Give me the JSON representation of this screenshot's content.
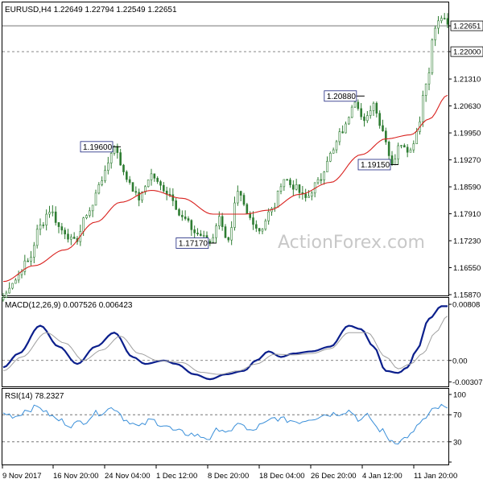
{
  "colors": {
    "background": "#ffffff",
    "frame": "#000000",
    "candles": "#2e7d32",
    "ma": "#d9211e",
    "macd": "#0b1f8c",
    "signal": "#a0a0a0",
    "rsi": "#3a8fd9",
    "guide": "#606060",
    "watermark": "#c8c8c8"
  },
  "chart_data": [
    {
      "type": "candlestick",
      "panel": "price",
      "title": "EURUSD,H4",
      "ohlc_label": "1.22649 1.22794 1.22549 1.22651",
      "ylim": [
        1.1587,
        1.2314
      ],
      "y_ticks": [
        "1.22651",
        "1.22000",
        "1.21310",
        "1.20630",
        "1.19950",
        "1.19270",
        "1.18590",
        "1.17910",
        "1.17230",
        "1.16550",
        "1.15870"
      ],
      "current_price": "1.22651",
      "h_lines": [
        {
          "value": "1.22000",
          "style": "dashed"
        },
        {
          "value": "1.22651",
          "style": "solid"
        }
      ],
      "annotations": [
        {
          "label": "1.19600",
          "bar": 36,
          "value": 1.196
        },
        {
          "label": "1.17170",
          "bar": 67,
          "value": 1.1717
        },
        {
          "label": "1.20880",
          "bar": 115,
          "value": 1.2088
        },
        {
          "label": "1.19150",
          "bar": 126,
          "value": 1.1915
        }
      ],
      "watermark": "ActionForex.com",
      "anchors": [
        [
          0,
          1.158
        ],
        [
          3,
          1.162
        ],
        [
          8,
          1.167
        ],
        [
          12,
          1.176
        ],
        [
          15,
          1.18
        ],
        [
          19,
          1.175
        ],
        [
          23,
          1.172
        ],
        [
          28,
          1.18
        ],
        [
          32,
          1.188
        ],
        [
          36,
          1.196
        ],
        [
          40,
          1.188
        ],
        [
          44,
          1.183
        ],
        [
          48,
          1.189
        ],
        [
          51,
          1.186
        ],
        [
          54,
          1.184
        ],
        [
          58,
          1.178
        ],
        [
          63,
          1.174
        ],
        [
          67,
          1.172
        ],
        [
          70,
          1.178
        ],
        [
          73,
          1.172
        ],
        [
          76,
          1.184
        ],
        [
          80,
          1.178
        ],
        [
          83,
          1.175
        ],
        [
          87,
          1.18
        ],
        [
          91,
          1.188
        ],
        [
          94,
          1.186
        ],
        [
          98,
          1.183
        ],
        [
          102,
          1.187
        ],
        [
          106,
          1.194
        ],
        [
          110,
          1.2
        ],
        [
          114,
          1.208
        ],
        [
          117,
          1.202
        ],
        [
          120,
          1.207
        ],
        [
          123,
          1.2
        ],
        [
          126,
          1.192
        ],
        [
          129,
          1.197
        ],
        [
          132,
          1.195
        ],
        [
          134,
          1.2
        ],
        [
          137,
          1.212
        ],
        [
          140,
          1.226
        ],
        [
          142,
          1.2287
        ],
        [
          144,
          1.2265
        ]
      ],
      "ma_anchors": [
        [
          0,
          1.162
        ],
        [
          10,
          1.166
        ],
        [
          20,
          1.17
        ],
        [
          30,
          1.177
        ],
        [
          38,
          1.182
        ],
        [
          48,
          1.185
        ],
        [
          58,
          1.183
        ],
        [
          68,
          1.179
        ],
        [
          78,
          1.179
        ],
        [
          86,
          1.18
        ],
        [
          96,
          1.184
        ],
        [
          106,
          1.187
        ],
        [
          116,
          1.194
        ],
        [
          124,
          1.198
        ],
        [
          132,
          1.199
        ],
        [
          138,
          1.203
        ],
        [
          144,
          1.209
        ]
      ]
    },
    {
      "type": "line",
      "panel": "macd",
      "title": "MACD(12,26,9) 0.007526 0.006423",
      "ylim": [
        -0.0035,
        0.00808
      ],
      "y_ticks": [
        "0.00808",
        "0.00",
        "-0.003078"
      ],
      "series": [
        {
          "key": "macd",
          "anchors": [
            [
              0,
              -0.001
            ],
            [
              5,
              0.001
            ],
            [
              12,
              0.005
            ],
            [
              18,
              0.002
            ],
            [
              24,
              -0.0005
            ],
            [
              30,
              0.002
            ],
            [
              36,
              0.004
            ],
            [
              42,
              0.0005
            ],
            [
              46,
              -0.0005
            ],
            [
              52,
              0.0
            ],
            [
              56,
              -0.0005
            ],
            [
              62,
              -0.002
            ],
            [
              67,
              -0.0027
            ],
            [
              72,
              -0.002
            ],
            [
              78,
              -0.0015
            ],
            [
              82,
              0.0
            ],
            [
              86,
              0.0013
            ],
            [
              90,
              0.0005
            ],
            [
              94,
              0.001
            ],
            [
              100,
              0.0013
            ],
            [
              106,
              0.002
            ],
            [
              112,
              0.005
            ],
            [
              116,
              0.0045
            ],
            [
              120,
              0.002
            ],
            [
              124,
              -0.0015
            ],
            [
              128,
              -0.0018
            ],
            [
              131,
              -0.001
            ],
            [
              134,
              0.0015
            ],
            [
              138,
              0.006
            ],
            [
              142,
              0.0078
            ],
            [
              144,
              0.0078
            ]
          ]
        },
        {
          "key": "signal",
          "anchors": [
            [
              0,
              -0.0015
            ],
            [
              6,
              0.0005
            ],
            [
              14,
              0.004
            ],
            [
              20,
              0.0025
            ],
            [
              26,
              0.0
            ],
            [
              32,
              0.0015
            ],
            [
              38,
              0.0035
            ],
            [
              44,
              0.001
            ],
            [
              50,
              0.0
            ],
            [
              58,
              -0.0003
            ],
            [
              64,
              -0.0017
            ],
            [
              70,
              -0.002
            ],
            [
              76,
              -0.0015
            ],
            [
              82,
              -0.0005
            ],
            [
              88,
              0.0009
            ],
            [
              94,
              0.0008
            ],
            [
              100,
              0.001
            ],
            [
              106,
              0.0017
            ],
            [
              112,
              0.004
            ],
            [
              118,
              0.004
            ],
            [
              124,
              0.0005
            ],
            [
              128,
              -0.0012
            ],
            [
              132,
              -0.0005
            ],
            [
              136,
              0.001
            ],
            [
              140,
              0.004
            ],
            [
              144,
              0.0064
            ]
          ]
        }
      ]
    },
    {
      "type": "line",
      "panel": "rsi",
      "title": "RSI(14) 78.2327",
      "ylim": [
        0,
        100
      ],
      "y_ticks": [
        "100",
        "70",
        "30",
        "0"
      ],
      "levels": [
        70,
        30
      ],
      "anchors": [
        [
          0,
          72
        ],
        [
          4,
          68
        ],
        [
          8,
          78
        ],
        [
          12,
          82
        ],
        [
          14,
          72
        ],
        [
          18,
          62
        ],
        [
          22,
          55
        ],
        [
          26,
          60
        ],
        [
          30,
          72
        ],
        [
          36,
          80
        ],
        [
          40,
          62
        ],
        [
          44,
          52
        ],
        [
          48,
          62
        ],
        [
          52,
          55
        ],
        [
          56,
          45
        ],
        [
          60,
          42
        ],
        [
          64,
          38
        ],
        [
          67,
          35
        ],
        [
          70,
          50
        ],
        [
          74,
          42
        ],
        [
          76,
          60
        ],
        [
          80,
          45
        ],
        [
          84,
          55
        ],
        [
          88,
          65
        ],
        [
          92,
          62
        ],
        [
          96,
          60
        ],
        [
          100,
          65
        ],
        [
          104,
          70
        ],
        [
          108,
          72
        ],
        [
          112,
          76
        ],
        [
          116,
          62
        ],
        [
          118,
          68
        ],
        [
          122,
          48
        ],
        [
          126,
          32
        ],
        [
          128,
          30
        ],
        [
          132,
          40
        ],
        [
          136,
          62
        ],
        [
          140,
          78
        ],
        [
          142,
          82
        ],
        [
          144,
          78
        ]
      ]
    }
  ],
  "x_axis": {
    "labels": [
      "9 Nov 2017",
      "16 Nov 20:00",
      "24 Nov 04:00",
      "1 Dec 12:00",
      "8 Dec 20:00",
      "18 Dec 04:00",
      "26 Dec 20:00",
      "4 Jan 12:00",
      "11 Jan 20:00"
    ]
  }
}
